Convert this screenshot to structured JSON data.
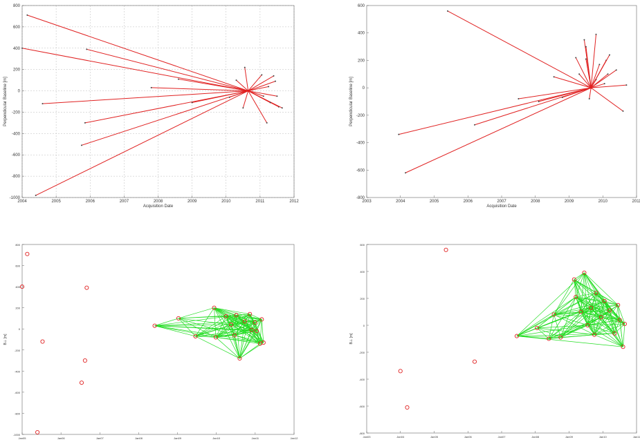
{
  "chart_data": [
    {
      "type": "line",
      "style": "star",
      "xlabel": "Acquisition Date",
      "ylabel": "Perpendicular Baseline [m]",
      "xlim": [
        2004,
        2012
      ],
      "ylim": [
        -1000,
        800
      ],
      "xticks": [
        "2004",
        "2005",
        "2006",
        "2007",
        "2008",
        "2009",
        "2010",
        "2011",
        "2012"
      ],
      "yticks": [
        -1000,
        -800,
        -600,
        -400,
        -200,
        0,
        200,
        400,
        600,
        800
      ],
      "grid": true,
      "line_color": "#e02020",
      "master": [
        2010.65,
        0
      ],
      "points": [
        [
          2004.15,
          710
        ],
        [
          2004.0,
          400
        ],
        [
          2004.6,
          -120
        ],
        [
          2004.4,
          -980
        ],
        [
          2005.9,
          390
        ],
        [
          2005.85,
          -300
        ],
        [
          2005.75,
          -510
        ],
        [
          2007.8,
          30
        ],
        [
          2008.6,
          110
        ],
        [
          2009.0,
          -110
        ],
        [
          2010.1,
          -60
        ],
        [
          2010.55,
          220
        ],
        [
          2010.3,
          100
        ],
        [
          2010.5,
          -160
        ],
        [
          2011.05,
          150
        ],
        [
          2011.1,
          -50
        ],
        [
          2011.2,
          -300
        ],
        [
          2011.25,
          40
        ],
        [
          2011.4,
          140
        ],
        [
          2011.45,
          90
        ],
        [
          2011.5,
          -50
        ],
        [
          2011.55,
          -150
        ],
        [
          2011.65,
          -160
        ],
        [
          2011.3,
          -110
        ]
      ]
    },
    {
      "type": "line",
      "style": "star",
      "xlabel": "Acquisition Date",
      "ylabel": "Perpendicular Baseline [m]",
      "xlim": [
        2003,
        2011
      ],
      "ylim": [
        -800,
        600
      ],
      "xticks": [
        "2003",
        "2004",
        "2005",
        "2006",
        "2007",
        "2008",
        "2009",
        "2010",
        "2011"
      ],
      "yticks": [
        -800,
        -600,
        -400,
        -200,
        0,
        200,
        400,
        600
      ],
      "grid": false,
      "line_color": "#e02020",
      "master": [
        2009.65,
        0
      ],
      "points": [
        [
          2005.4,
          560
        ],
        [
          2003.95,
          -340
        ],
        [
          2004.15,
          -620
        ],
        [
          2006.2,
          -270
        ],
        [
          2007.5,
          -80
        ],
        [
          2008.1,
          -100
        ],
        [
          2008.55,
          80
        ],
        [
          2008.8,
          -70
        ],
        [
          2009.2,
          220
        ],
        [
          2009.3,
          100
        ],
        [
          2009.45,
          350
        ],
        [
          2009.5,
          210
        ],
        [
          2009.5,
          300
        ],
        [
          2009.6,
          -80
        ],
        [
          2009.8,
          390
        ],
        [
          2009.8,
          60
        ],
        [
          2009.9,
          170
        ],
        [
          2010.1,
          200
        ],
        [
          2010.05,
          30
        ],
        [
          2010.2,
          240
        ],
        [
          2010.15,
          100
        ],
        [
          2010.4,
          130
        ],
        [
          2010.6,
          -170
        ],
        [
          2010.7,
          20
        ]
      ]
    },
    {
      "type": "scatter",
      "style": "network",
      "xlabel": "",
      "ylabel": "B⊥ [m]",
      "xlim": [
        2004,
        2012
      ],
      "ylim": [
        -1000,
        800
      ],
      "xticks": [
        "Jan05",
        "Jan06",
        "Jan07",
        "Jan08",
        "Jan09",
        "Jan10",
        "Jan11",
        "Jan12"
      ],
      "yticks": [
        -1000,
        -800,
        -600,
        -400,
        -200,
        0,
        200,
        400,
        600,
        800
      ],
      "marker_color": "#e02020",
      "edge_color": "#22dd22",
      "points": [
        [
          2004.15,
          710
        ],
        [
          2004.0,
          400
        ],
        [
          2004.6,
          -120
        ],
        [
          2004.45,
          -980
        ],
        [
          2005.9,
          390
        ],
        [
          2005.85,
          -300
        ],
        [
          2005.75,
          -510
        ],
        [
          2007.9,
          30
        ],
        [
          2008.6,
          100
        ],
        [
          2009.1,
          -70
        ],
        [
          2009.65,
          200
        ],
        [
          2009.7,
          -80
        ],
        [
          2010.0,
          120
        ],
        [
          2010.15,
          40
        ],
        [
          2010.25,
          -60
        ],
        [
          2010.3,
          130
        ],
        [
          2010.4,
          -280
        ],
        [
          2010.55,
          70
        ],
        [
          2010.7,
          140
        ],
        [
          2010.75,
          -10
        ],
        [
          2010.85,
          60
        ],
        [
          2010.9,
          -20
        ],
        [
          2011.0,
          -140
        ],
        [
          2011.1,
          -130
        ],
        [
          2011.05,
          90
        ]
      ]
    },
    {
      "type": "scatter",
      "style": "network",
      "xlabel": "",
      "ylabel": "B⊥ [m]",
      "xlim": [
        2003,
        2011
      ],
      "ylim": [
        -800,
        600
      ],
      "xticks": [
        "Jan03",
        "Jan04",
        "Jan05",
        "Jan06",
        "Jan07",
        "Jan08",
        "Jan09",
        "Jan10",
        "Jan11"
      ],
      "yticks": [
        -800,
        -600,
        -400,
        -200,
        0,
        200,
        400,
        600
      ],
      "marker_color": "#e02020",
      "edge_color": "#22dd22",
      "points": [
        [
          2005.35,
          560
        ],
        [
          2004.0,
          -340
        ],
        [
          2004.2,
          -610
        ],
        [
          2006.2,
          -270
        ],
        [
          2007.45,
          -80
        ],
        [
          2008.05,
          -20
        ],
        [
          2008.4,
          -100
        ],
        [
          2008.55,
          80
        ],
        [
          2008.75,
          -90
        ],
        [
          2009.15,
          340
        ],
        [
          2009.2,
          210
        ],
        [
          2009.35,
          100
        ],
        [
          2009.45,
          390
        ],
        [
          2009.55,
          0
        ],
        [
          2009.65,
          130
        ],
        [
          2009.75,
          -70
        ],
        [
          2009.8,
          240
        ],
        [
          2009.95,
          60
        ],
        [
          2010.05,
          180
        ],
        [
          2010.2,
          110
        ],
        [
          2010.35,
          -60
        ],
        [
          2010.45,
          150
        ],
        [
          2010.6,
          -160
        ],
        [
          2010.65,
          10
        ],
        [
          2010.5,
          40
        ]
      ]
    }
  ]
}
